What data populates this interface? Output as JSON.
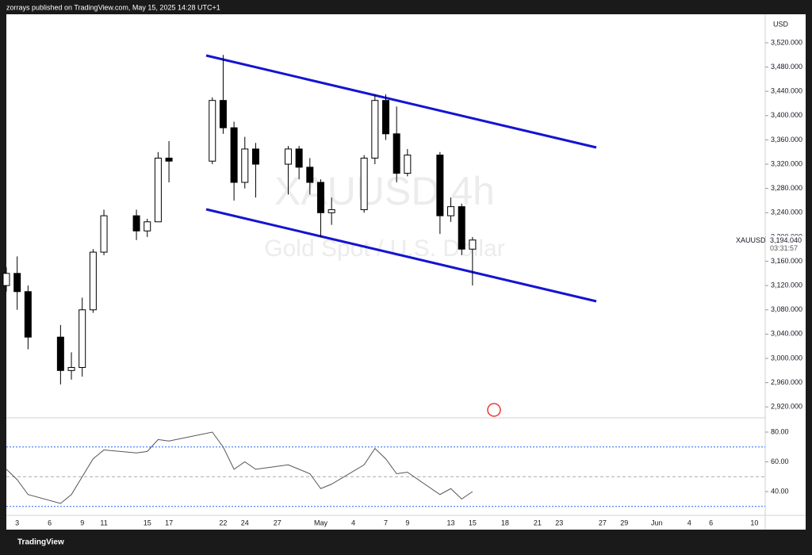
{
  "header": "zorrays published on TradingView.com, May 15, 2025 14:28 UTC+1",
  "footer": "TradingView",
  "chart_data": [
    {
      "type": "candlestick",
      "watermark": "XAUUSD 4h",
      "watermark_subtitle": "Gold Spot / U.S. Dollar",
      "currency": "USD",
      "symbol": "XAUUSD",
      "last_price": {
        "value": 3194.04,
        "label": "3,194.040"
      },
      "countdown": "03:31:57",
      "up_color": "#ffffff",
      "down_color": "#000000",
      "x": [
        "Apr 2",
        "Apr 3",
        "Apr 4",
        "Apr 7",
        "Apr 8",
        "Apr 9",
        "Apr 10",
        "Apr 11",
        "Apr 14",
        "Apr 15",
        "Apr 16",
        "Apr 17",
        "Apr 21",
        "Apr 22",
        "Apr 23",
        "Apr 24",
        "Apr 25",
        "Apr 28",
        "Apr 29",
        "Apr 30",
        "May 1",
        "May 2",
        "May 5",
        "May 6",
        "May 7",
        "May 8",
        "May 9",
        "May 12",
        "May 13",
        "May 14",
        "May 15"
      ],
      "open": [
        3120,
        3140,
        3110,
        3035,
        2980,
        2985,
        3080,
        3175,
        3235,
        3210,
        3225,
        3330,
        3325,
        3425,
        3380,
        3290,
        3345,
        3320,
        3345,
        3315,
        3290,
        3240,
        3245,
        3330,
        3425,
        3370,
        3305,
        3335,
        3235,
        3250,
        3180
      ],
      "high": [
        3150,
        3168,
        3120,
        3055,
        3010,
        3100,
        3180,
        3245,
        3245,
        3230,
        3340,
        3358,
        3430,
        3500,
        3390,
        3365,
        3355,
        3350,
        3350,
        3330,
        3295,
        3265,
        3335,
        3435,
        3435,
        3415,
        3345,
        3340,
        3265,
        3255,
        3200
      ],
      "low": [
        3110,
        3080,
        3015,
        2957,
        2965,
        2970,
        3075,
        3170,
        3195,
        3200,
        3225,
        3290,
        3320,
        3370,
        3260,
        3280,
        3265,
        3270,
        3295,
        3270,
        3200,
        3220,
        3240,
        3320,
        3360,
        3290,
        3300,
        3205,
        3225,
        3170,
        3120
      ],
      "close": [
        3140,
        3110,
        3035,
        2980,
        2985,
        3080,
        3175,
        3235,
        3210,
        3225,
        3330,
        3325,
        3425,
        3380,
        3290,
        3345,
        3320,
        3345,
        3315,
        3290,
        3240,
        3245,
        3330,
        3425,
        3370,
        3305,
        3335,
        3235,
        3250,
        3180,
        3195
      ],
      "xlim": [
        "Apr 2",
        "Jun 11"
      ],
      "xticks": [
        {
          "value": "Apr 3",
          "label": "3"
        },
        {
          "value": "Apr 6",
          "label": "6"
        },
        {
          "value": "Apr 9",
          "label": "9"
        },
        {
          "value": "Apr 11",
          "label": "11"
        },
        {
          "value": "Apr 15",
          "label": "15"
        },
        {
          "value": "Apr 17",
          "label": "17"
        },
        {
          "value": "Apr 22",
          "label": "22"
        },
        {
          "value": "Apr 24",
          "label": "24"
        },
        {
          "value": "Apr 27",
          "label": "27"
        },
        {
          "value": "May 1",
          "label": "May"
        },
        {
          "value": "May 4",
          "label": "4"
        },
        {
          "value": "May 7",
          "label": "7"
        },
        {
          "value": "May 9",
          "label": "9"
        },
        {
          "value": "May 13",
          "label": "13"
        },
        {
          "value": "May 15",
          "label": "15"
        },
        {
          "value": "May 18",
          "label": "18"
        },
        {
          "value": "May 21",
          "label": "21"
        },
        {
          "value": "May 23",
          "label": "23"
        },
        {
          "value": "May 27",
          "label": "27"
        },
        {
          "value": "May 29",
          "label": "29"
        },
        {
          "value": "Jun 1",
          "label": "Jun"
        },
        {
          "value": "Jun 4",
          "label": "4"
        },
        {
          "value": "Jun 6",
          "label": "6"
        },
        {
          "value": "Jun 10",
          "label": "10"
        }
      ],
      "ylim": [
        2902,
        3567
      ],
      "yticks": [
        {
          "value": 2920,
          "label": "2,920.000"
        },
        {
          "value": 2960,
          "label": "2,960.000"
        },
        {
          "value": 3000,
          "label": "3,000.000"
        },
        {
          "value": 3040,
          "label": "3,040.000"
        },
        {
          "value": 3080,
          "label": "3,080.000"
        },
        {
          "value": 3120,
          "label": "3,120.000"
        },
        {
          "value": 3160,
          "label": "3,160.000"
        },
        {
          "value": 3200,
          "label": "3,200.000"
        },
        {
          "value": 3240,
          "label": "3,240.000"
        },
        {
          "value": 3280,
          "label": "3,280.000"
        },
        {
          "value": 3320,
          "label": "3,320.000"
        },
        {
          "value": 3360,
          "label": "3,360.000"
        },
        {
          "value": 3400,
          "label": "3,400.000"
        },
        {
          "value": 3440,
          "label": "3,440.000"
        },
        {
          "value": 3480,
          "label": "3,480.000"
        },
        {
          "value": 3520,
          "label": "3,520.000"
        }
      ]
    },
    {
      "type": "line",
      "color": "#555555",
      "x": [
        "Apr 2",
        "Apr 3",
        "Apr 4",
        "Apr 7",
        "Apr 8",
        "Apr 9",
        "Apr 10",
        "Apr 11",
        "Apr 14",
        "Apr 15",
        "Apr 16",
        "Apr 17",
        "Apr 21",
        "Apr 22",
        "Apr 23",
        "Apr 24",
        "Apr 25",
        "Apr 28",
        "Apr 29",
        "Apr 30",
        "May 1",
        "May 2",
        "May 5",
        "May 6",
        "May 7",
        "May 8",
        "May 9",
        "May 12",
        "May 13",
        "May 14",
        "May 15"
      ],
      "values": [
        55,
        48,
        38,
        32,
        38,
        50,
        62,
        68,
        66,
        67,
        75,
        74,
        80,
        70,
        55,
        60,
        55,
        58,
        55,
        52,
        42,
        45,
        58,
        69,
        62,
        52,
        53,
        38,
        42,
        35,
        40
      ],
      "levels": [
        70,
        50,
        30
      ],
      "level_color": "#2962ff",
      "ylim": [
        24,
        89.6
      ],
      "yticks": [
        {
          "value": 40,
          "label": "40.00"
        },
        {
          "value": 60,
          "label": "60.00"
        },
        {
          "value": 80,
          "label": "80.00"
        }
      ]
    }
  ]
}
